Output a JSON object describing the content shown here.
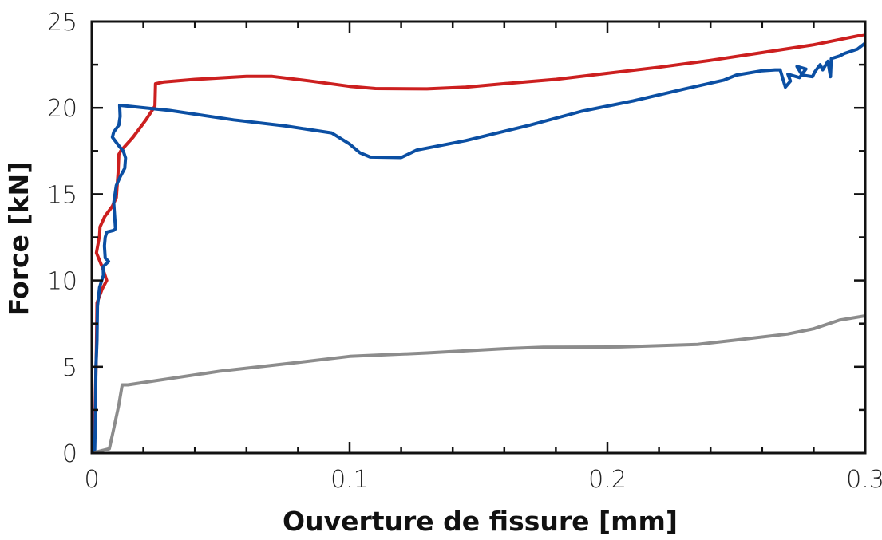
{
  "chart_data": {
    "type": "line",
    "title": "",
    "xlabel": "Ouverture de fissure [mm]",
    "ylabel": "Force [kN]",
    "xlim": [
      0,
      0.3
    ],
    "ylim": [
      0,
      25
    ],
    "x_ticks": [
      0,
      0.1,
      0.2,
      0.3
    ],
    "x_tick_labels": [
      "0",
      "0.1",
      "0.2",
      "0.3"
    ],
    "y_ticks": [
      0,
      5,
      10,
      15,
      20,
      25
    ],
    "y_tick_labels": [
      "0",
      "5",
      "10",
      "15",
      "20",
      "25"
    ],
    "grid": false,
    "legend": "none",
    "series": [
      {
        "color": "#cc1f1f",
        "points": [
          [
            0.0009,
            0
          ],
          [
            0.0012,
            2
          ],
          [
            0.0015,
            4
          ],
          [
            0.0018,
            6
          ],
          [
            0.002,
            8.7
          ],
          [
            0.004,
            9.5
          ],
          [
            0.0058,
            10
          ],
          [
            0.004,
            10.8
          ],
          [
            0.0018,
            11.6
          ],
          [
            0.003,
            12.6
          ],
          [
            0.0032,
            13.1
          ],
          [
            0.005,
            13.7
          ],
          [
            0.008,
            14.3
          ],
          [
            0.0095,
            14.8
          ],
          [
            0.0102,
            16.2
          ],
          [
            0.0105,
            17.3
          ],
          [
            0.0112,
            17.5
          ],
          [
            0.016,
            18.3
          ],
          [
            0.021,
            19.3
          ],
          [
            0.0245,
            20.1
          ],
          [
            0.0247,
            21.4
          ],
          [
            0.028,
            21.5
          ],
          [
            0.04,
            21.65
          ],
          [
            0.06,
            21.82
          ],
          [
            0.07,
            21.82
          ],
          [
            0.085,
            21.55
          ],
          [
            0.1,
            21.25
          ],
          [
            0.11,
            21.12
          ],
          [
            0.13,
            21.1
          ],
          [
            0.145,
            21.2
          ],
          [
            0.16,
            21.4
          ],
          [
            0.18,
            21.65
          ],
          [
            0.2,
            22.0
          ],
          [
            0.22,
            22.35
          ],
          [
            0.24,
            22.75
          ],
          [
            0.26,
            23.2
          ],
          [
            0.28,
            23.65
          ],
          [
            0.3,
            24.25
          ]
        ]
      },
      {
        "color": "#0b4fa3",
        "points": [
          [
            0.0011,
            0
          ],
          [
            0.0013,
            1.3
          ],
          [
            0.0015,
            3
          ],
          [
            0.0016,
            5
          ],
          [
            0.002,
            6.5
          ],
          [
            0.0022,
            8.5
          ],
          [
            0.003,
            9.6
          ],
          [
            0.0045,
            10.3
          ],
          [
            0.0044,
            10.8
          ],
          [
            0.0065,
            11.1
          ],
          [
            0.0052,
            11.3
          ],
          [
            0.0049,
            12.0
          ],
          [
            0.0052,
            12.5
          ],
          [
            0.0058,
            12.8
          ],
          [
            0.0085,
            12.9
          ],
          [
            0.0092,
            13.0
          ],
          [
            0.0085,
            14.5
          ],
          [
            0.0095,
            15.5
          ],
          [
            0.011,
            16.0
          ],
          [
            0.0128,
            16.5
          ],
          [
            0.0131,
            17.1
          ],
          [
            0.0122,
            17.5
          ],
          [
            0.0105,
            17.8
          ],
          [
            0.008,
            18.3
          ],
          [
            0.0085,
            18.6
          ],
          [
            0.0105,
            19.0
          ],
          [
            0.011,
            19.5
          ],
          [
            0.0108,
            20.15
          ],
          [
            0.03,
            19.85
          ],
          [
            0.055,
            19.3
          ],
          [
            0.075,
            18.95
          ],
          [
            0.093,
            18.55
          ],
          [
            0.1,
            17.9
          ],
          [
            0.104,
            17.4
          ],
          [
            0.108,
            17.15
          ],
          [
            0.12,
            17.12
          ],
          [
            0.126,
            17.55
          ],
          [
            0.145,
            18.1
          ],
          [
            0.17,
            19.0
          ],
          [
            0.19,
            19.8
          ],
          [
            0.21,
            20.4
          ],
          [
            0.23,
            21.1
          ],
          [
            0.245,
            21.6
          ],
          [
            0.25,
            21.9
          ],
          [
            0.26,
            22.15
          ],
          [
            0.265,
            22.2
          ],
          [
            0.267,
            22.2
          ],
          [
            0.269,
            21.2
          ],
          [
            0.271,
            21.55
          ],
          [
            0.27,
            21.95
          ],
          [
            0.2745,
            21.75
          ],
          [
            0.277,
            22.25
          ],
          [
            0.2735,
            22.4
          ],
          [
            0.2755,
            21.9
          ],
          [
            0.2795,
            21.8
          ],
          [
            0.2805,
            22.1
          ],
          [
            0.2825,
            22.5
          ],
          [
            0.2835,
            22.2
          ],
          [
            0.2855,
            22.7
          ],
          [
            0.2865,
            21.8
          ],
          [
            0.2868,
            22.85
          ],
          [
            0.29,
            23.0
          ],
          [
            0.292,
            23.15
          ],
          [
            0.297,
            23.4
          ],
          [
            0.3,
            23.75
          ]
        ]
      },
      {
        "color": "#8c8c8c",
        "points": [
          [
            0.0015,
            0.05
          ],
          [
            0.0068,
            0.25
          ],
          [
            0.0082,
            1.2
          ],
          [
            0.0105,
            2.8
          ],
          [
            0.0118,
            3.95
          ],
          [
            0.014,
            3.95
          ],
          [
            0.05,
            4.75
          ],
          [
            0.08,
            5.25
          ],
          [
            0.1,
            5.6
          ],
          [
            0.13,
            5.8
          ],
          [
            0.16,
            6.05
          ],
          [
            0.175,
            6.13
          ],
          [
            0.205,
            6.15
          ],
          [
            0.235,
            6.3
          ],
          [
            0.25,
            6.55
          ],
          [
            0.27,
            6.9
          ],
          [
            0.28,
            7.2
          ],
          [
            0.29,
            7.7
          ],
          [
            0.3,
            7.95
          ]
        ]
      }
    ]
  }
}
